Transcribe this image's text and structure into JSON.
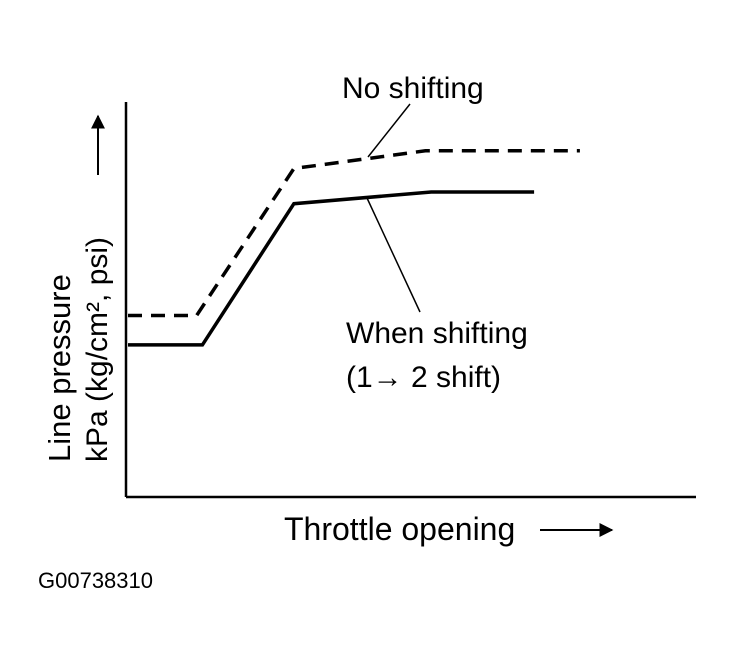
{
  "figure_id": "G00738310",
  "chart_data": {
    "type": "line",
    "title": "",
    "xlabel": "Throttle opening",
    "ylabel_line1": "Line pressure",
    "ylabel_line2": "kPa (kg/cm², psi)",
    "x_ticks": [],
    "y_ticks": [],
    "grid": false,
    "xlim": [
      0,
      100
    ],
    "ylim": [
      0,
      100
    ],
    "series": [
      {
        "name": "No shifting",
        "style": "dashed",
        "x": [
          0,
          12,
          29,
          52,
          79
        ],
        "y": [
          41,
          41,
          91,
          97,
          97
        ]
      },
      {
        "name": "When shifting",
        "name_line2": "(1→ 2 shift)",
        "style": "solid",
        "x": [
          0,
          13,
          29,
          53,
          71
        ],
        "y": [
          31,
          31,
          79,
          83,
          83
        ]
      }
    ]
  }
}
